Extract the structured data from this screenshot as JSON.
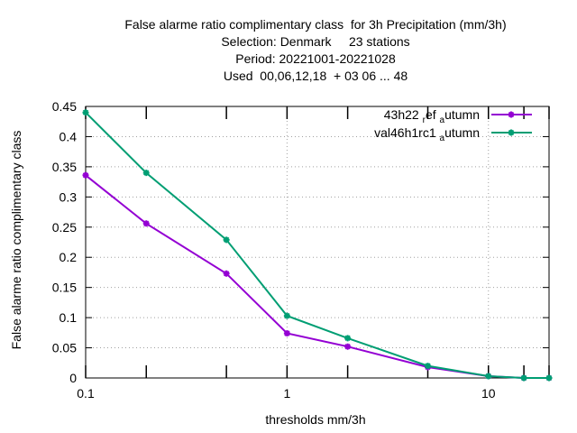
{
  "chart_data": {
    "type": "line",
    "title_lines": [
      "False alarme ratio complimentary class  for 3h Precipitation (mm/3h)",
      "Selection: Denmark     23 stations",
      "Period: 20221001-20221028",
      "Used  00,06,12,18  + 03 06 ... 48"
    ],
    "xlabel": "thresholds mm/3h",
    "ylabel": "False alarme ratio complimentary class",
    "x_scale": "log",
    "xlim": [
      0.1,
      20
    ],
    "ylim": [
      0,
      0.45
    ],
    "x_ticks": [
      {
        "value": 0.1,
        "label": "0.1"
      },
      {
        "value": 1,
        "label": "1"
      },
      {
        "value": 10,
        "label": "10"
      }
    ],
    "x_minor_ticks": [
      0.2,
      0.5,
      2,
      5,
      15,
      20
    ],
    "y_ticks": [
      {
        "value": 0,
        "label": "0"
      },
      {
        "value": 0.05,
        "label": "0.05"
      },
      {
        "value": 0.1,
        "label": "0.1"
      },
      {
        "value": 0.15,
        "label": "0.15"
      },
      {
        "value": 0.2,
        "label": "0.2"
      },
      {
        "value": 0.25,
        "label": "0.25"
      },
      {
        "value": 0.3,
        "label": "0.3"
      },
      {
        "value": 0.35,
        "label": "0.35"
      },
      {
        "value": 0.4,
        "label": "0.4"
      },
      {
        "value": 0.45,
        "label": "0.45"
      }
    ],
    "grid": true,
    "legend_position": "top-right",
    "series": [
      {
        "name_main": "43h22",
        "name_sub1": "r",
        "name_mid": "ef",
        "name_sub2": "a",
        "name_end": "utumn",
        "color": "#9400d3",
        "x": [
          0.1,
          0.2,
          0.5,
          1,
          2,
          5,
          10,
          15,
          20
        ],
        "y": [
          0.336,
          0.256,
          0.173,
          0.074,
          0.052,
          0.018,
          0.003,
          0.0,
          0.0
        ]
      },
      {
        "name_main": "val46h1rc1",
        "name_sub1": "",
        "name_mid": "",
        "name_sub2": "a",
        "name_end": "utumn",
        "color": "#009e73",
        "x": [
          0.1,
          0.2,
          0.5,
          1,
          2,
          5,
          10,
          15,
          20
        ],
        "y": [
          0.44,
          0.34,
          0.229,
          0.103,
          0.066,
          0.02,
          0.003,
          0.0,
          0.0
        ]
      }
    ]
  }
}
